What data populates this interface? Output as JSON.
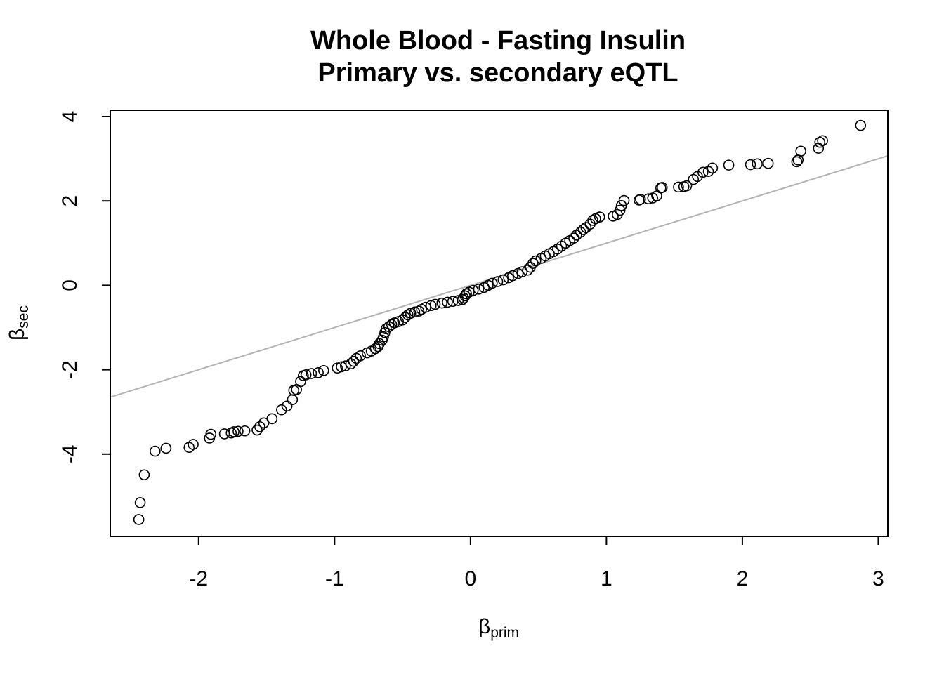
{
  "chart_data": {
    "type": "scatter",
    "title": "Whole Blood - Fasting Insulin",
    "subtitle": "Primary vs. secondary eQTL",
    "xlabel": {
      "symbol": "β",
      "subscript": "prim"
    },
    "ylabel": {
      "symbol": "β",
      "subscript": "sec"
    },
    "xlim": [
      -2.65,
      3.07
    ],
    "ylim": [
      -5.95,
      4.15
    ],
    "xticks": [
      -2,
      -1,
      0,
      1,
      2,
      3
    ],
    "yticks": [
      -4,
      -2,
      0,
      2,
      4
    ],
    "grid": false,
    "legend": "none",
    "point_style": "open-circle",
    "reference_line": {
      "intercept": 0,
      "slope": 1,
      "color": "#b3b3b3"
    },
    "points": [
      [
        -2.44,
        -5.55
      ],
      [
        -2.43,
        -5.15
      ],
      [
        -2.4,
        -4.49
      ],
      [
        -2.32,
        -3.93
      ],
      [
        -2.24,
        -3.86
      ],
      [
        -2.07,
        -3.84
      ],
      [
        -2.04,
        -3.77
      ],
      [
        -1.92,
        -3.62
      ],
      [
        -1.91,
        -3.53
      ],
      [
        -1.81,
        -3.52
      ],
      [
        -1.76,
        -3.5
      ],
      [
        -1.74,
        -3.47
      ],
      [
        -1.71,
        -3.46
      ],
      [
        -1.66,
        -3.45
      ],
      [
        -1.57,
        -3.43
      ],
      [
        -1.55,
        -3.35
      ],
      [
        -1.52,
        -3.26
      ],
      [
        -1.46,
        -3.16
      ],
      [
        -1.39,
        -2.95
      ],
      [
        -1.35,
        -2.86
      ],
      [
        -1.31,
        -2.71
      ],
      [
        -1.3,
        -2.49
      ],
      [
        -1.28,
        -2.47
      ],
      [
        -1.25,
        -2.28
      ],
      [
        -1.23,
        -2.14
      ],
      [
        -1.21,
        -2.12
      ],
      [
        -1.17,
        -2.09
      ],
      [
        -1.12,
        -2.07
      ],
      [
        -1.08,
        -2.02
      ],
      [
        -0.98,
        -1.96
      ],
      [
        -0.95,
        -1.93
      ],
      [
        -0.92,
        -1.91
      ],
      [
        -0.88,
        -1.86
      ],
      [
        -0.86,
        -1.8
      ],
      [
        -0.84,
        -1.73
      ],
      [
        -0.81,
        -1.67
      ],
      [
        -0.76,
        -1.6
      ],
      [
        -0.73,
        -1.56
      ],
      [
        -0.7,
        -1.5
      ],
      [
        -0.68,
        -1.45
      ],
      [
        -0.67,
        -1.38
      ],
      [
        -0.65,
        -1.3
      ],
      [
        -0.64,
        -1.22
      ],
      [
        -0.63,
        -1.12
      ],
      [
        -0.62,
        -1.03
      ],
      [
        -0.6,
        -0.98
      ],
      [
        -0.58,
        -0.93
      ],
      [
        -0.56,
        -0.89
      ],
      [
        -0.53,
        -0.86
      ],
      [
        -0.5,
        -0.82
      ],
      [
        -0.48,
        -0.76
      ],
      [
        -0.46,
        -0.7
      ],
      [
        -0.44,
        -0.66
      ],
      [
        -0.41,
        -0.63
      ],
      [
        -0.38,
        -0.61
      ],
      [
        -0.36,
        -0.57
      ],
      [
        -0.33,
        -0.52
      ],
      [
        -0.29,
        -0.48
      ],
      [
        -0.26,
        -0.45
      ],
      [
        -0.21,
        -0.42
      ],
      [
        -0.17,
        -0.4
      ],
      [
        -0.13,
        -0.38
      ],
      [
        -0.09,
        -0.36
      ],
      [
        -0.06,
        -0.34
      ],
      [
        -0.05,
        -0.3
      ],
      [
        -0.04,
        -0.25
      ],
      [
        -0.03,
        -0.2
      ],
      [
        -0.01,
        -0.16
      ],
      [
        0.02,
        -0.12
      ],
      [
        0.06,
        -0.09
      ],
      [
        0.1,
        -0.05
      ],
      [
        0.13,
        0.0
      ],
      [
        0.16,
        0.05
      ],
      [
        0.2,
        0.09
      ],
      [
        0.24,
        0.13
      ],
      [
        0.28,
        0.18
      ],
      [
        0.31,
        0.23
      ],
      [
        0.35,
        0.28
      ],
      [
        0.38,
        0.32
      ],
      [
        0.42,
        0.36
      ],
      [
        0.44,
        0.43
      ],
      [
        0.46,
        0.52
      ],
      [
        0.48,
        0.58
      ],
      [
        0.52,
        0.64
      ],
      [
        0.55,
        0.7
      ],
      [
        0.58,
        0.75
      ],
      [
        0.61,
        0.8
      ],
      [
        0.64,
        0.86
      ],
      [
        0.67,
        0.93
      ],
      [
        0.7,
        1.0
      ],
      [
        0.73,
        1.06
      ],
      [
        0.76,
        1.12
      ],
      [
        0.78,
        1.19
      ],
      [
        0.81,
        1.26
      ],
      [
        0.83,
        1.32
      ],
      [
        0.85,
        1.37
      ],
      [
        0.88,
        1.45
      ],
      [
        0.9,
        1.54
      ],
      [
        0.92,
        1.58
      ],
      [
        0.95,
        1.62
      ],
      [
        1.05,
        1.64
      ],
      [
        1.08,
        1.68
      ],
      [
        1.1,
        1.78
      ],
      [
        1.11,
        1.89
      ],
      [
        1.13,
        2.01
      ],
      [
        1.24,
        2.02
      ],
      [
        1.25,
        2.04
      ],
      [
        1.31,
        2.05
      ],
      [
        1.34,
        2.07
      ],
      [
        1.37,
        2.12
      ],
      [
        1.4,
        2.31
      ],
      [
        1.41,
        2.32
      ],
      [
        1.53,
        2.33
      ],
      [
        1.57,
        2.34
      ],
      [
        1.59,
        2.36
      ],
      [
        1.64,
        2.51
      ],
      [
        1.67,
        2.58
      ],
      [
        1.71,
        2.68
      ],
      [
        1.75,
        2.7
      ],
      [
        1.78,
        2.78
      ],
      [
        1.9,
        2.85
      ],
      [
        2.06,
        2.86
      ],
      [
        2.11,
        2.88
      ],
      [
        2.19,
        2.89
      ],
      [
        2.4,
        2.93
      ],
      [
        2.41,
        2.97
      ],
      [
        2.43,
        3.18
      ],
      [
        2.56,
        3.25
      ],
      [
        2.57,
        3.39
      ],
      [
        2.59,
        3.43
      ],
      [
        2.87,
        3.79
      ]
    ]
  }
}
